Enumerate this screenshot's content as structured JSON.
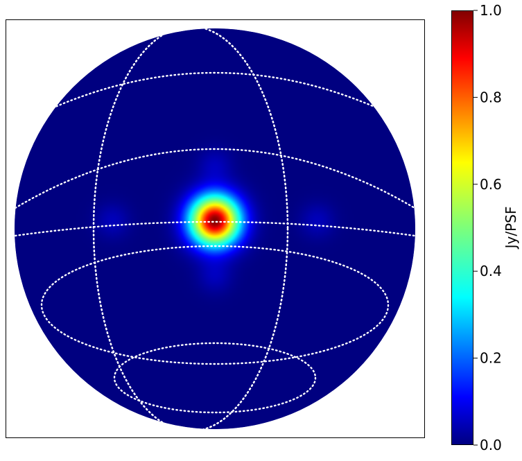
{
  "chart_data": {
    "type": "heatmap",
    "projection": "orthographic sky map (all-sky hemisphere)",
    "title": "",
    "xlabel": "",
    "ylabel": "",
    "grid": "dotted white graticule (meridians and parallels)",
    "source": {
      "center_offset_from_disk_center": [
        0.0,
        -0.04
      ],
      "peak_value": 1.0,
      "profile": "gaussian beam with faint sidelobes",
      "sidelobe_level": 0.05
    },
    "colormap": {
      "name": "jet",
      "stops": [
        {
          "v": 0.0,
          "color": "#000080"
        },
        {
          "v": 0.11,
          "color": "#0000ff"
        },
        {
          "v": 0.34,
          "color": "#00ffff"
        },
        {
          "v": 0.5,
          "color": "#7dff7a"
        },
        {
          "v": 0.65,
          "color": "#ffff00"
        },
        {
          "v": 0.89,
          "color": "#ff0000"
        },
        {
          "v": 1.0,
          "color": "#800000"
        }
      ]
    },
    "colorbar": {
      "label": "Jy/PSF",
      "range": [
        0.0,
        1.0
      ],
      "ticks": [
        {
          "value": 0.0,
          "label": "0.0"
        },
        {
          "value": 0.2,
          "label": "0.2"
        },
        {
          "value": 0.4,
          "label": "0.4"
        },
        {
          "value": 0.6,
          "label": "0.6"
        },
        {
          "value": 0.8,
          "label": "0.8"
        },
        {
          "value": 1.0,
          "label": "1.0"
        }
      ]
    },
    "colors": {
      "background": "#000080",
      "graticule": "#ffffff",
      "frame": "#000000"
    }
  }
}
